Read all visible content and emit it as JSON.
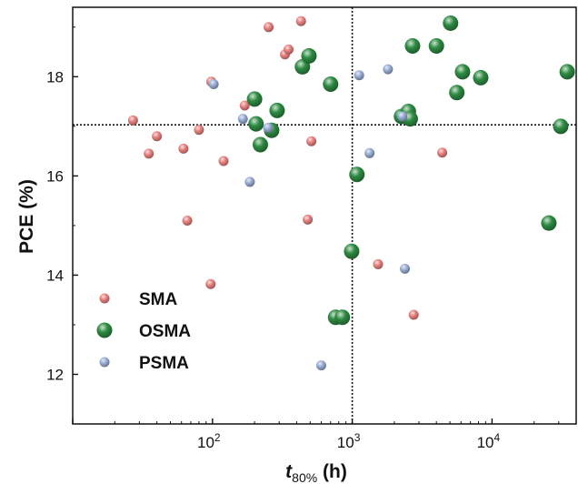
{
  "chart_data": {
    "type": "scatter",
    "title": "",
    "xscale": "log",
    "xlim": [
      10,
      40000
    ],
    "ylim": [
      11,
      19.4
    ],
    "xlabel_main": "t",
    "xlabel_sub": "80%",
    "xlabel_unit": " (h)",
    "ylabel": "PCE (%)",
    "x_ticks": [
      {
        "value": 100,
        "base": "10",
        "exp": "2"
      },
      {
        "value": 1000,
        "base": "10",
        "exp": "3"
      },
      {
        "value": 10000,
        "base": "10",
        "exp": "4"
      }
    ],
    "y_ticks": [
      {
        "value": 12,
        "label": "12"
      },
      {
        "value": 14,
        "label": "14"
      },
      {
        "value": 16,
        "label": "16"
      },
      {
        "value": 18,
        "label": "18"
      }
    ],
    "reference_lines": {
      "x": 1000,
      "y": 17.03
    },
    "grid": false,
    "legend_position": "bottom-left",
    "series": [
      {
        "name": "SMA",
        "color": "#e8817f",
        "size": "small",
        "points": [
          {
            "x": 27,
            "y": 17.12
          },
          {
            "x": 35,
            "y": 16.45
          },
          {
            "x": 40,
            "y": 16.8
          },
          {
            "x": 62,
            "y": 16.55
          },
          {
            "x": 66,
            "y": 15.1
          },
          {
            "x": 80,
            "y": 16.93
          },
          {
            "x": 97,
            "y": 13.82
          },
          {
            "x": 98,
            "y": 17.9
          },
          {
            "x": 120,
            "y": 16.3
          },
          {
            "x": 170,
            "y": 17.42
          },
          {
            "x": 252,
            "y": 19.0
          },
          {
            "x": 330,
            "y": 18.45
          },
          {
            "x": 350,
            "y": 18.55
          },
          {
            "x": 430,
            "y": 19.12
          },
          {
            "x": 480,
            "y": 15.12
          },
          {
            "x": 510,
            "y": 16.7
          },
          {
            "x": 1530,
            "y": 14.22
          },
          {
            "x": 2750,
            "y": 13.2
          },
          {
            "x": 4400,
            "y": 16.47
          }
        ]
      },
      {
        "name": "OSMA",
        "color": "#2e8b43",
        "size": "large",
        "points": [
          {
            "x": 200,
            "y": 17.55
          },
          {
            "x": 205,
            "y": 17.05
          },
          {
            "x": 220,
            "y": 16.63
          },
          {
            "x": 265,
            "y": 16.92
          },
          {
            "x": 290,
            "y": 17.32
          },
          {
            "x": 440,
            "y": 18.2
          },
          {
            "x": 490,
            "y": 18.42
          },
          {
            "x": 700,
            "y": 17.85
          },
          {
            "x": 760,
            "y": 13.15
          },
          {
            "x": 850,
            "y": 13.15
          },
          {
            "x": 990,
            "y": 14.48
          },
          {
            "x": 1080,
            "y": 16.03
          },
          {
            "x": 2250,
            "y": 17.2
          },
          {
            "x": 2520,
            "y": 17.3
          },
          {
            "x": 2600,
            "y": 17.15
          },
          {
            "x": 2700,
            "y": 18.62
          },
          {
            "x": 4000,
            "y": 18.62
          },
          {
            "x": 5050,
            "y": 19.08
          },
          {
            "x": 5600,
            "y": 17.68
          },
          {
            "x": 6150,
            "y": 18.1
          },
          {
            "x": 8300,
            "y": 17.98
          },
          {
            "x": 25500,
            "y": 15.05
          },
          {
            "x": 31000,
            "y": 17.0
          },
          {
            "x": 34500,
            "y": 18.1
          }
        ]
      },
      {
        "name": "PSMA",
        "color": "#99add4",
        "size": "small",
        "points": [
          {
            "x": 102,
            "y": 17.85
          },
          {
            "x": 165,
            "y": 17.15
          },
          {
            "x": 185,
            "y": 15.88
          },
          {
            "x": 250,
            "y": 16.97
          },
          {
            "x": 600,
            "y": 12.18
          },
          {
            "x": 1120,
            "y": 18.03
          },
          {
            "x": 1330,
            "y": 16.46
          },
          {
            "x": 1800,
            "y": 18.15
          },
          {
            "x": 2280,
            "y": 17.2
          },
          {
            "x": 2380,
            "y": 14.13
          }
        ]
      }
    ]
  }
}
